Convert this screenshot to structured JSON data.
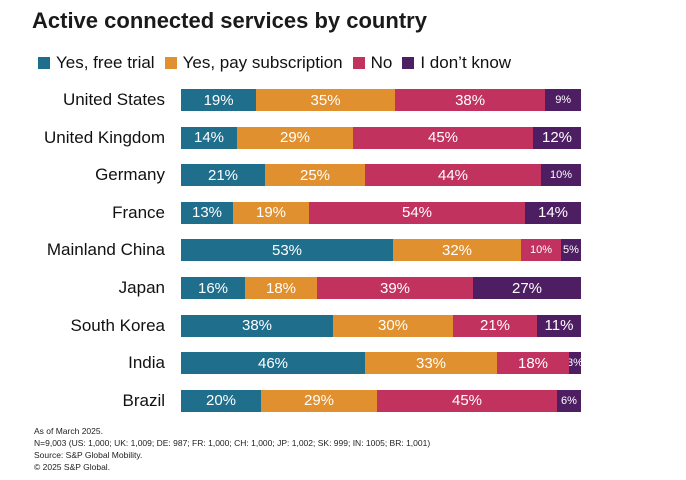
{
  "chart_data": {
    "type": "bar",
    "orientation": "horizontal",
    "stacked": true,
    "title": "Active connected services by country",
    "categories": [
      "United States",
      "United Kingdom",
      "Germany",
      "France",
      "Mainland China",
      "Japan",
      "South Korea",
      "India",
      "Brazil"
    ],
    "series": [
      {
        "name": "Yes, free trial",
        "color": "#1f6e8c",
        "values": [
          19,
          14,
          21,
          13,
          53,
          16,
          38,
          46,
          20
        ]
      },
      {
        "name": "Yes, pay subscription",
        "color": "#e0902e",
        "values": [
          35,
          29,
          25,
          19,
          32,
          18,
          30,
          33,
          29
        ]
      },
      {
        "name": "No",
        "color": "#c2325f",
        "values": [
          38,
          45,
          44,
          54,
          10,
          39,
          21,
          18,
          45
        ]
      },
      {
        "name": "I don’t know",
        "color": "#4e1e63",
        "values": [
          9,
          12,
          10,
          14,
          5,
          27,
          11,
          3,
          6
        ]
      }
    ],
    "value_suffix": "%",
    "legend_position": "top",
    "grid": false
  },
  "footnotes": [
    "As of March 2025.",
    "N=9,003 (US: 1,000; UK: 1,009; DE: 987; FR: 1,000; CH: 1,000; JP: 1,002; SK: 999; IN: 1005; BR: 1,001)",
    "Source: S&P Global Mobility.",
    "© 2025 S&P Global."
  ]
}
